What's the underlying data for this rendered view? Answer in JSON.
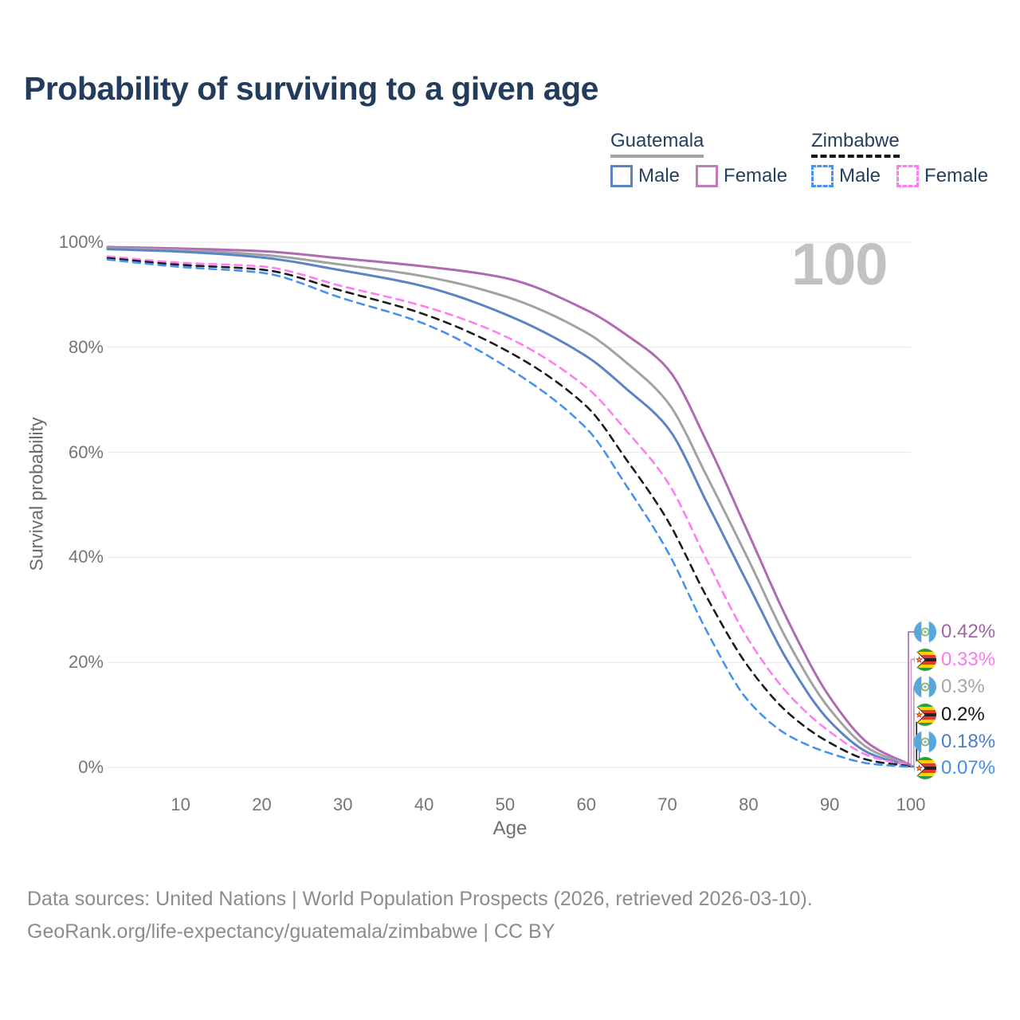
{
  "title": "Probability of surviving to a given age",
  "watermark": "100",
  "legend": {
    "groups": [
      {
        "country": "Guatemala",
        "line_style": "solid",
        "line_color": "#a2a2a2",
        "items": [
          {
            "label": "Male",
            "style": "solid",
            "color": "#5b84c6"
          },
          {
            "label": "Female",
            "style": "solid",
            "color": "#bf7cbd"
          }
        ]
      },
      {
        "country": "Zimbabwe",
        "line_style": "dashed",
        "line_color": "#161616",
        "items": [
          {
            "label": "Male",
            "style": "dashed",
            "color": "#4593ef"
          },
          {
            "label": "Female",
            "style": "dashed",
            "color": "#ff7df0"
          }
        ]
      }
    ]
  },
  "axes": {
    "xlabel": "Age",
    "ylabel": "Survival probability",
    "xticks": [
      10,
      20,
      30,
      40,
      50,
      60,
      70,
      80,
      90,
      100
    ],
    "yticks": [
      "0%",
      "20%",
      "40%",
      "60%",
      "80%",
      "100%"
    ],
    "xlim": [
      1,
      100
    ],
    "ylim": [
      0,
      100
    ],
    "grid": "horizontal"
  },
  "chart_data": {
    "type": "line",
    "title": "Probability of surviving to a given age",
    "x_ages": [
      1,
      10,
      20,
      30,
      40,
      50,
      60,
      65,
      70,
      75,
      80,
      85,
      90,
      95,
      100
    ],
    "series": [
      {
        "name": "Guatemala Female",
        "country": "Guatemala",
        "sex": "Female",
        "style": "solid",
        "color": "#b06ab2",
        "values": [
          99.1,
          98.8,
          98.3,
          96.9,
          95.4,
          93.2,
          87.1,
          82.3,
          76.0,
          61.5,
          44.5,
          27.5,
          13.4,
          4.3,
          0.42
        ]
      },
      {
        "name": "Guatemala Both sexes",
        "country": "Guatemala",
        "sex": "Both",
        "style": "solid",
        "color": "#a2a2a2",
        "values": [
          98.9,
          98.5,
          97.6,
          95.7,
          93.5,
          89.7,
          82.8,
          77.0,
          69.6,
          55.0,
          39.5,
          23.5,
          11.1,
          3.4,
          0.3
        ]
      },
      {
        "name": "Guatemala Male",
        "country": "Guatemala",
        "sex": "Male",
        "style": "solid",
        "color": "#5b84c6",
        "values": [
          98.7,
          98.2,
          97.1,
          94.6,
          91.6,
          86.3,
          78.3,
          72.0,
          64.8,
          50.0,
          34.7,
          19.8,
          8.8,
          2.6,
          0.18
        ]
      },
      {
        "name": "Zimbabwe Female",
        "country": "Zimbabwe",
        "sex": "Female",
        "style": "dashed",
        "color": "#ff7df0",
        "values": [
          97.3,
          96.1,
          95.4,
          91.6,
          87.8,
          82.1,
          72.4,
          64.0,
          54.4,
          39.0,
          24.3,
          13.8,
          6.8,
          2.1,
          0.33
        ]
      },
      {
        "name": "Zimbabwe Both sexes",
        "country": "Zimbabwe",
        "sex": "Both",
        "style": "dashed",
        "color": "#1c1c1c",
        "values": [
          97.0,
          95.7,
          94.8,
          90.7,
          86.3,
          79.5,
          68.8,
          58.5,
          47.1,
          32.0,
          19.1,
          10.2,
          4.7,
          1.3,
          0.2
        ]
      },
      {
        "name": "Zimbabwe Male",
        "country": "Zimbabwe",
        "sex": "Male",
        "style": "dashed",
        "color": "#4593ef",
        "values": [
          96.7,
          95.3,
          94.2,
          89.3,
          84.5,
          76.4,
          64.6,
          53.5,
          41.2,
          25.5,
          12.6,
          6.0,
          2.7,
          0.7,
          0.07
        ]
      }
    ],
    "end_labels": [
      {
        "flag": "guatemala",
        "series": "Guatemala Female",
        "value": "0.42%",
        "color": "#a164a4"
      },
      {
        "flag": "zimbabwe",
        "series": "Zimbabwe Female",
        "value": "0.33%",
        "color": "#ff77f0"
      },
      {
        "flag": "guatemala",
        "series": "Guatemala Both sexes",
        "value": "0.3%",
        "color": "#a6a6a6"
      },
      {
        "flag": "zimbabwe",
        "series": "Zimbabwe Both sexes",
        "value": "0.2%",
        "color": "#141414"
      },
      {
        "flag": "guatemala",
        "series": "Guatemala Male",
        "value": "0.18%",
        "color": "#4d7ec9"
      },
      {
        "flag": "zimbabwe",
        "series": "Zimbabwe Male",
        "value": "0.07%",
        "color": "#3f8fe8"
      }
    ]
  },
  "footer": {
    "line1": "Data sources: United Nations | World Population Prospects (2026, retrieved 2026-03-10).",
    "line2": "GeoRank.org/life-expectancy/guatemala/zimbabwe | CC BY"
  }
}
